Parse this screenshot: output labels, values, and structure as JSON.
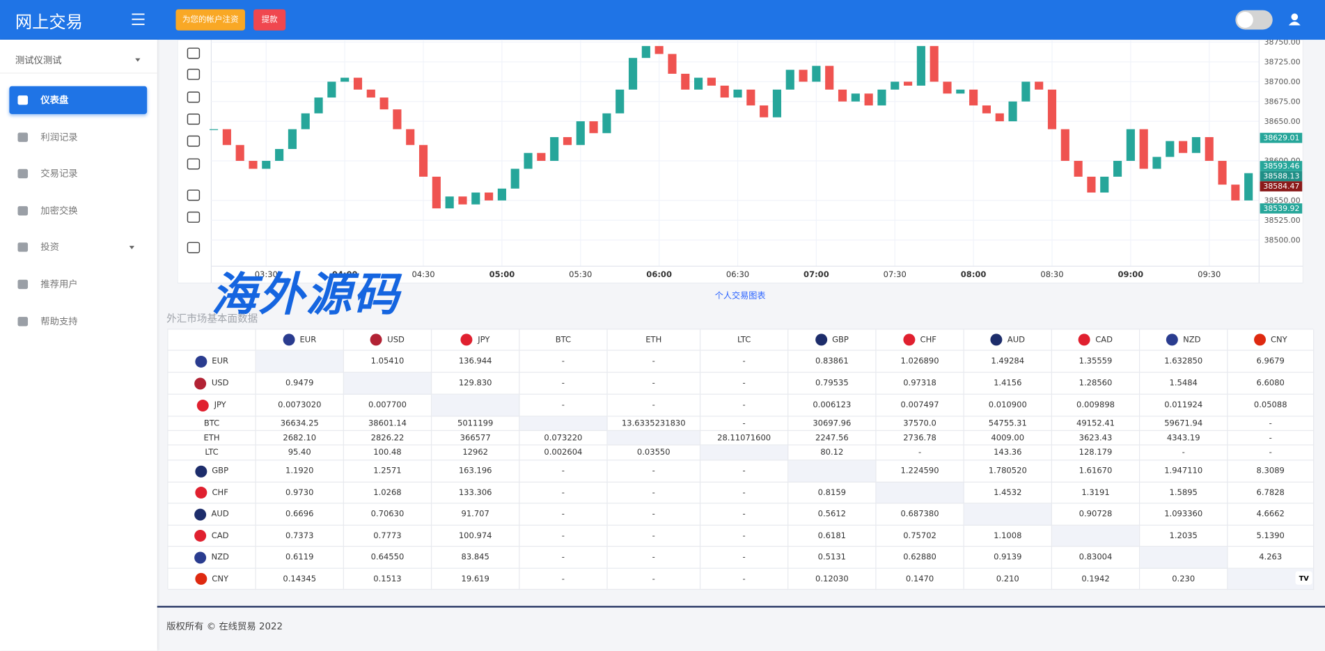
{
  "header": {
    "logo": "网上交易",
    "buttons": [
      "为您的帐户注资",
      "提款"
    ]
  },
  "sidebar": {
    "user": "测试仪测试",
    "menu": [
      "仪表盘",
      "利润记录",
      "交易记录",
      "加密交换",
      "投资",
      "推荐用户",
      "帮助支持"
    ]
  },
  "chart_data": {
    "type": "candlestick",
    "caption": "个人交易图表",
    "x_labels": [
      "03:30",
      "04:00",
      "04:30",
      "05:00",
      "05:30",
      "06:00",
      "06:30",
      "07:00",
      "07:30",
      "08:00",
      "08:30",
      "09:00",
      "09:30"
    ],
    "values": [
      38640,
      38620,
      38600,
      38590,
      38600,
      38615,
      38640,
      38660,
      38680,
      38700,
      38705,
      38690,
      38680,
      38665,
      38640,
      38620,
      38580,
      38540,
      38555,
      38545,
      38560,
      38550,
      38565,
      38590,
      38610,
      38600,
      38630,
      38620,
      38650,
      38635,
      38660,
      38690,
      38730,
      38745,
      38735,
      38710,
      38690,
      38705,
      38695,
      38680,
      38690,
      38670,
      38655,
      38690,
      38715,
      38700,
      38720,
      38690,
      38675,
      38685,
      38670,
      38690,
      38700,
      38695,
      38745,
      38700,
      38685,
      38690,
      38670,
      38660,
      38650,
      38675,
      38700,
      38690,
      38640,
      38600,
      38580,
      38560,
      38580,
      38600,
      38640,
      38590,
      38605,
      38625,
      38610,
      38630,
      38600,
      38570,
      38550,
      38584.47
    ],
    "up_color": "#26a69a",
    "down_color": "#ef5350",
    "ylim": [
      38467,
      38753
    ],
    "yticks": [
      {
        "value": 38750,
        "label": "38750.00"
      },
      {
        "value": 38725,
        "label": "38725.00"
      },
      {
        "value": 38700,
        "label": "38700.00"
      },
      {
        "value": 38675,
        "label": "38675.00"
      },
      {
        "value": 38650,
        "label": "38650.00"
      },
      {
        "value": 38600,
        "label": "38600.00"
      },
      {
        "value": 38550,
        "label": "38550.00"
      },
      {
        "value": 38525,
        "label": "38525.00"
      },
      {
        "value": 38500,
        "label": "38500.00"
      }
    ],
    "price_labels": [
      {
        "value": 38629.01,
        "color": "#26a69a"
      },
      {
        "value": 38593.46,
        "color": "#26a69a"
      },
      {
        "value": 38588.13,
        "color": "#1f8f86"
      },
      {
        "value": 38584.47,
        "color": "#8b1a1a"
      },
      {
        "value": 38539.92,
        "color": "#26a69a"
      }
    ],
    "grid": true
  },
  "watermark": "海外源码",
  "table": {
    "title": "外汇市场基本面数据",
    "columns": [
      "EUR",
      "USD",
      "JPY",
      "BTC",
      "ETH",
      "LTC",
      "GBP",
      "CHF",
      "AUD",
      "CAD",
      "NZD",
      "CNY"
    ],
    "rows": [
      {
        "label": "EUR",
        "cells": [
          null,
          "1.05410",
          "136.944",
          "-",
          "-",
          "-",
          "0.83861",
          "1.026890",
          "1.49284",
          "1.35559",
          "1.632850",
          "6.9679"
        ]
      },
      {
        "label": "USD",
        "cells": [
          "0.9479",
          null,
          "129.830",
          "-",
          "-",
          "-",
          "0.79535",
          "0.97318",
          "1.4156",
          "1.28560",
          "1.5484",
          "6.6080"
        ]
      },
      {
        "label": "JPY",
        "cells": [
          "0.0073020",
          "0.007700",
          null,
          "-",
          "-",
          "-",
          "0.006123",
          "0.007497",
          "0.010900",
          "0.009898",
          "0.011924",
          "0.05088"
        ]
      },
      {
        "label": "BTC",
        "cells": [
          "36634.25",
          "38601.14",
          "5011199",
          null,
          "13.6335231830",
          "-",
          "30697.96",
          "37570.0",
          "54755.31",
          "49152.41",
          "59671.94",
          "-"
        ]
      },
      {
        "label": "ETH",
        "cells": [
          "2682.10",
          "2826.22",
          "366577",
          "0.073220",
          null,
          "28.11071600",
          "2247.56",
          "2736.78",
          "4009.00",
          "3623.43",
          "4343.19",
          "-"
        ]
      },
      {
        "label": "LTC",
        "cells": [
          "95.40",
          "100.48",
          "12962",
          "0.002604",
          "0.03550",
          null,
          "80.12",
          "-",
          "143.36",
          "128.179",
          "-",
          "-"
        ]
      },
      {
        "label": "GBP",
        "cells": [
          "1.1920",
          "1.2571",
          "163.196",
          "-",
          "-",
          "-",
          null,
          "1.224590",
          "1.780520",
          "1.61670",
          "1.947110",
          "8.3089"
        ]
      },
      {
        "label": "CHF",
        "cells": [
          "0.9730",
          "1.0268",
          "133.306",
          "-",
          "-",
          "-",
          "0.8159",
          null,
          "1.4532",
          "1.3191",
          "1.5895",
          "6.7828"
        ]
      },
      {
        "label": "AUD",
        "cells": [
          "0.6696",
          "0.70630",
          "91.707",
          "-",
          "-",
          "-",
          "0.5612",
          "0.687380",
          null,
          "0.90728",
          "1.093360",
          "4.6662"
        ]
      },
      {
        "label": "CAD",
        "cells": [
          "0.7373",
          "0.7773",
          "100.974",
          "-",
          "-",
          "-",
          "0.6181",
          "0.75702",
          "1.1008",
          null,
          "1.2035",
          "5.1390"
        ]
      },
      {
        "label": "NZD",
        "cells": [
          "0.6119",
          "0.64550",
          "83.845",
          "-",
          "-",
          "-",
          "0.5131",
          "0.62880",
          "0.9139",
          "0.83004",
          null,
          "4.263"
        ]
      },
      {
        "label": "CNY",
        "cells": [
          "0.14345",
          "0.1513",
          "19.619",
          "-",
          "-",
          "-",
          "0.12030",
          "0.1470",
          "0.210",
          "0.1942",
          "0.230",
          null
        ]
      }
    ]
  },
  "footer": "版权所有 © 在线贸易 2022"
}
